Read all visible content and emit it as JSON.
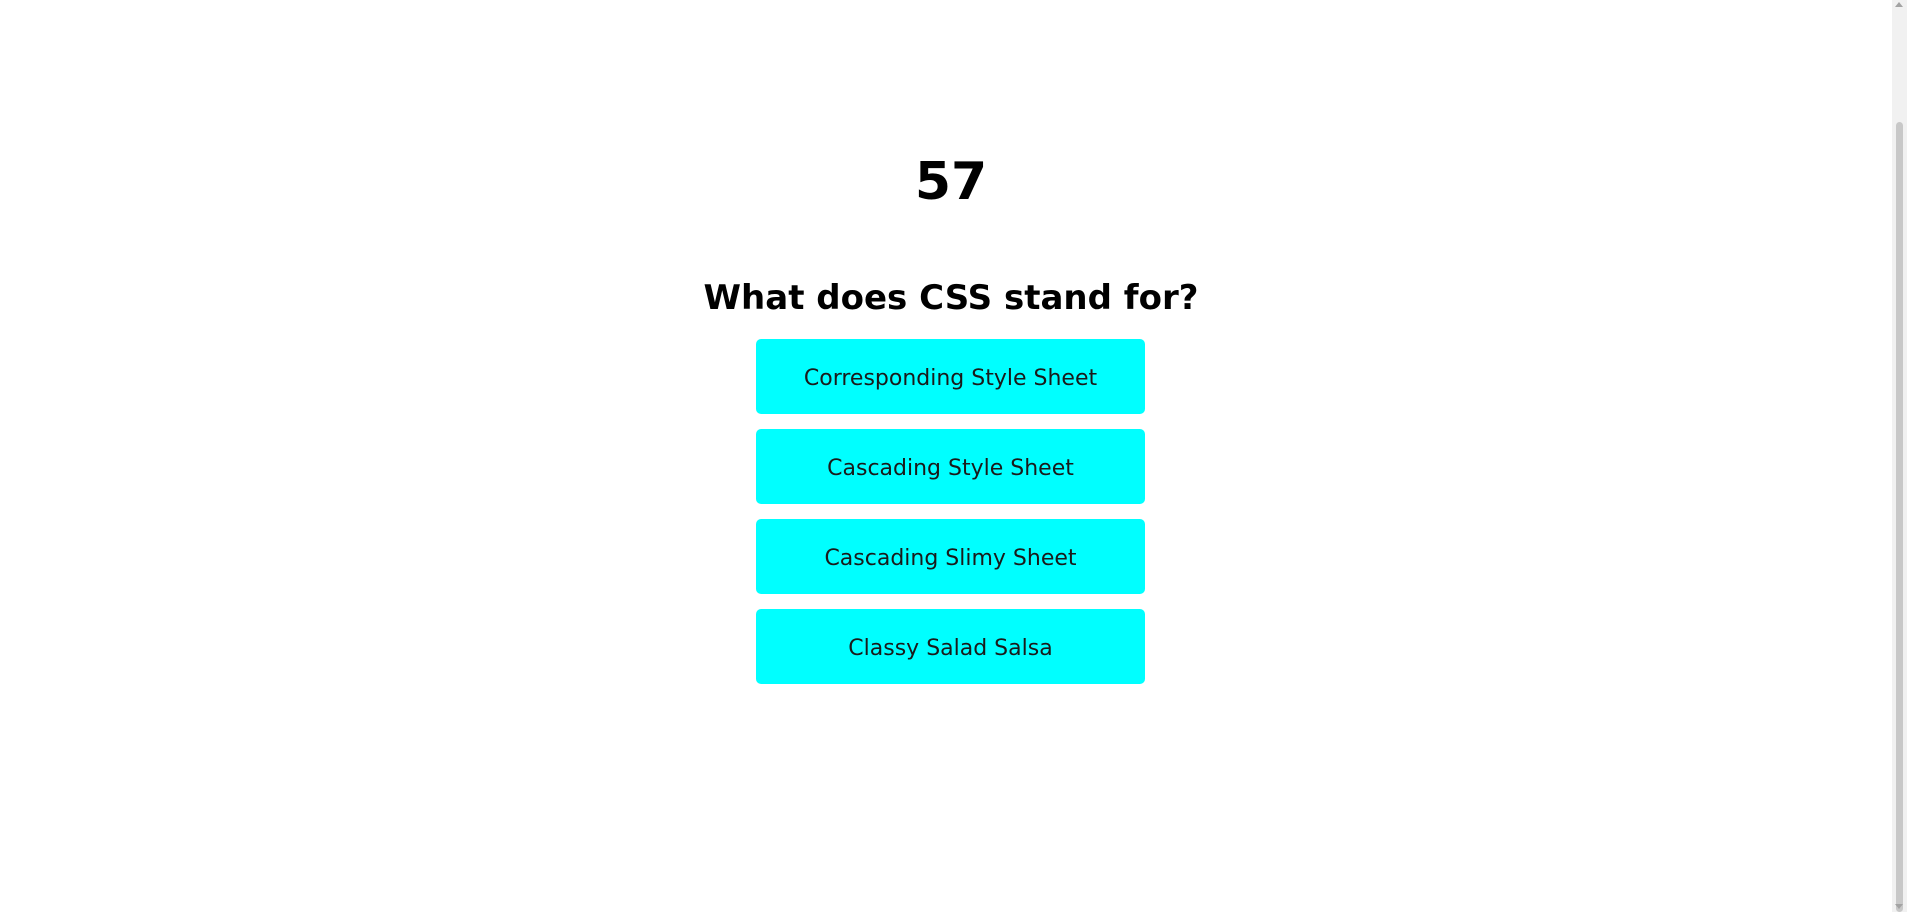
{
  "quiz": {
    "timer": "57",
    "question": "What does CSS stand for?",
    "answers": [
      "Corresponding Style Sheet",
      "Cascading Style Sheet",
      "Cascading Slimy Sheet",
      "Classy Salad Salsa"
    ]
  },
  "colors": {
    "answer_background": "#00ffff",
    "page_background": "#ffffff",
    "text": "#000000"
  },
  "icons": {
    "scroll_up": "scroll-up-arrow-icon",
    "scroll_down": "scroll-down-arrow-icon"
  }
}
